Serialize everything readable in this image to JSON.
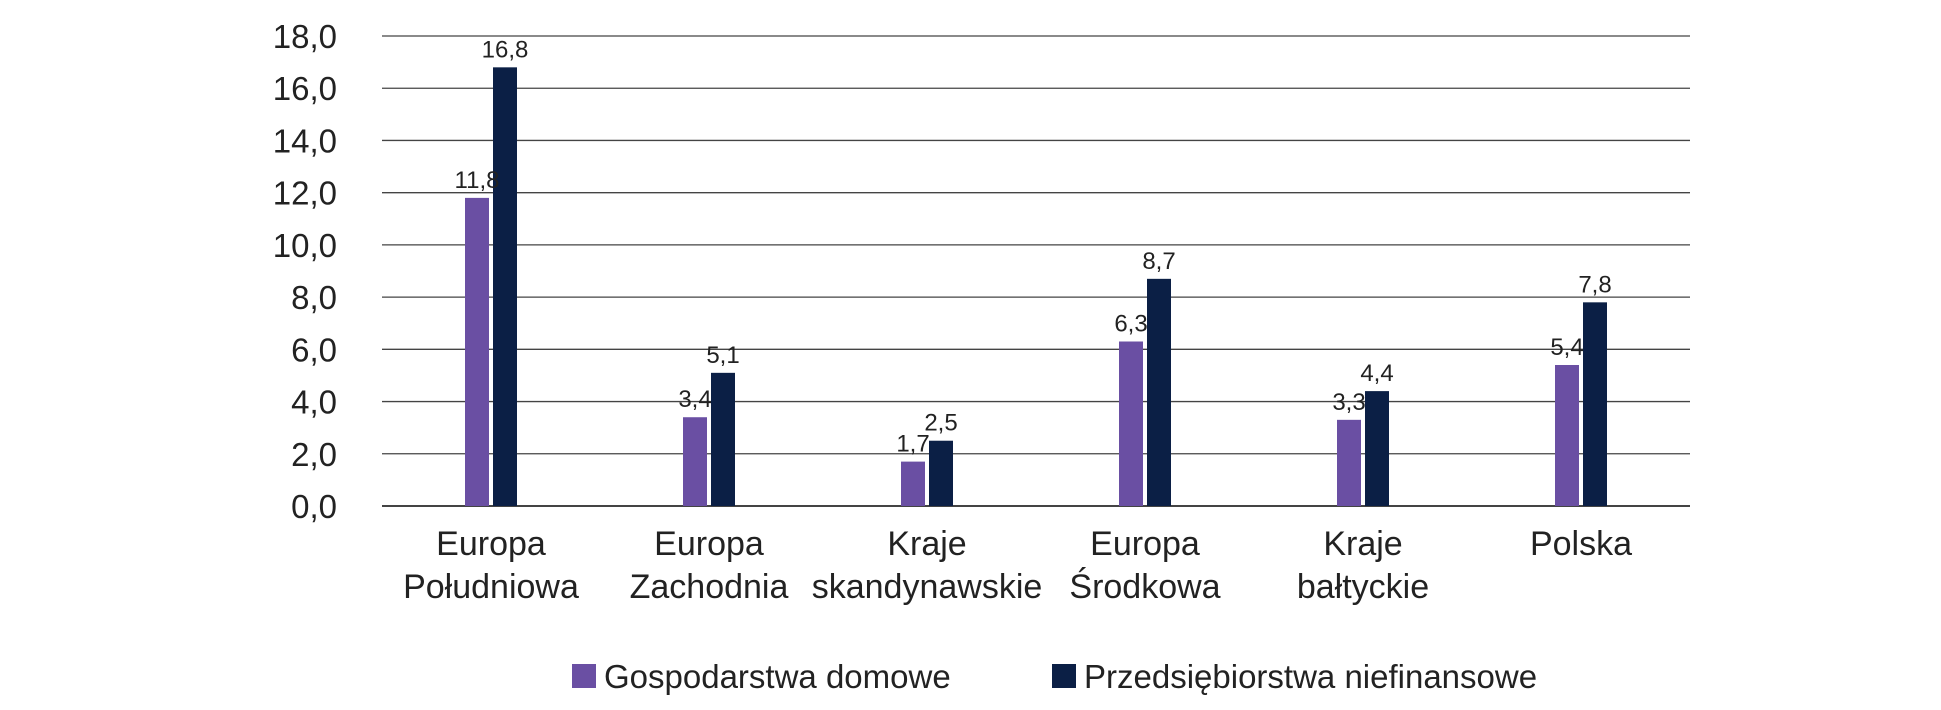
{
  "chart_data": {
    "type": "bar",
    "title": "",
    "xlabel": "",
    "ylabel": "",
    "ylim": [
      0,
      18
    ],
    "yticks": [
      "0,0",
      "2,0",
      "4,0",
      "6,0",
      "8,0",
      "10,0",
      "12,0",
      "14,0",
      "16,0",
      "18,0"
    ],
    "grid": true,
    "legend_position": "bottom",
    "categories": [
      [
        "Europa",
        "Południowa"
      ],
      [
        "Europa",
        "Zachodnia"
      ],
      [
        "Kraje",
        "skandynawskie"
      ],
      [
        "Europa",
        "Środkowa"
      ],
      [
        "Kraje",
        "bałtyckie"
      ],
      [
        "Polska"
      ]
    ],
    "series": [
      {
        "name": "Gospodarstwa domowe",
        "color": "#6a4fa3",
        "values": [
          11.8,
          3.4,
          1.7,
          6.3,
          3.3,
          5.4
        ],
        "labels": [
          "11,8",
          "3,4",
          "1,7",
          "6,3",
          "3,3",
          "5,4"
        ]
      },
      {
        "name": "Przedsiębiorstwa niefinansowe",
        "color": "#0b1f45",
        "values": [
          16.8,
          5.1,
          2.5,
          8.7,
          4.4,
          7.8
        ],
        "labels": [
          "16,8",
          "5,1",
          "2,5",
          "8,7",
          "4,4",
          "7,8"
        ]
      }
    ],
    "gridline_color": "#444444"
  }
}
